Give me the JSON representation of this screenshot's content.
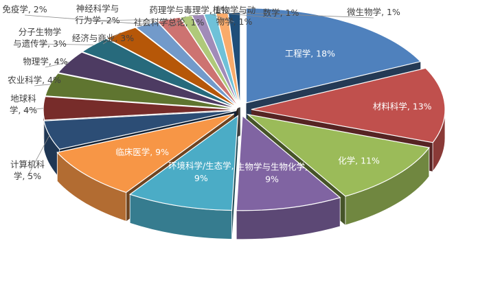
{
  "chart_data": {
    "type": "pie",
    "title": "",
    "label_format": "{name}, {value}%",
    "series": [
      {
        "name": "工程学",
        "value": 18,
        "color": "#4F81BD"
      },
      {
        "name": "材料科学",
        "value": 13,
        "color": "#C0504D"
      },
      {
        "name": "化学",
        "value": 11,
        "color": "#9BBB59"
      },
      {
        "name": "生物学与生物化学",
        "value": 9,
        "color": "#8064A2"
      },
      {
        "name": "环境科学/生态学",
        "value": 9,
        "color": "#4BACC6"
      },
      {
        "name": "临床医学",
        "value": 9,
        "color": "#F79646"
      },
      {
        "name": "计算机科学",
        "value": 5,
        "color": "#2C4D75"
      },
      {
        "name": "地球科学",
        "value": 4,
        "color": "#772C2A"
      },
      {
        "name": "农业科学",
        "value": 4,
        "color": "#5F7530"
      },
      {
        "name": "物理学",
        "value": 4,
        "color": "#4D3B62"
      },
      {
        "name": "分子生物学与遗传学",
        "value": 3,
        "color": "#276A7C"
      },
      {
        "name": "经济与商业",
        "value": 3,
        "color": "#B65708"
      },
      {
        "name": "免疫学",
        "value": 2,
        "color": "#729ACA"
      },
      {
        "name": "神经科学与行为学",
        "value": 2,
        "color": "#CD7371"
      },
      {
        "name": "社会科学总论",
        "value": 1,
        "color": "#AFC97A"
      },
      {
        "name": "药理学与毒理学",
        "value": 1,
        "color": "#A18BB8"
      },
      {
        "name": "植物学与动物学",
        "value": 1,
        "color": "#6FC1D8"
      },
      {
        "name": "数学",
        "value": 1,
        "color": "#F9AB6B"
      },
      {
        "name": "微生物学",
        "value": 1,
        "color": "#1F4E79"
      }
    ]
  }
}
